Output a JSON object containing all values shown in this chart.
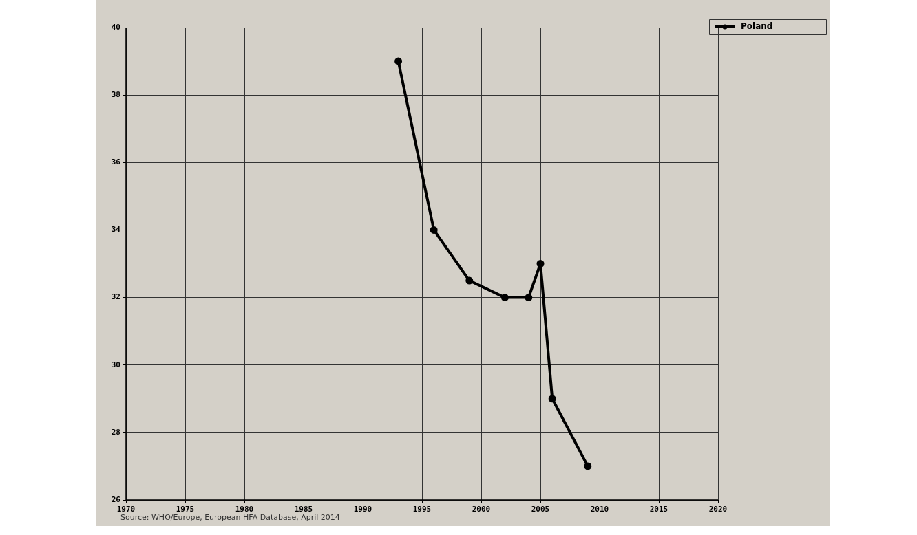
{
  "chart_data": {
    "type": "line",
    "x": [
      1993,
      1996,
      1999,
      2002,
      2004,
      2005,
      2006,
      2009
    ],
    "series": [
      {
        "name": "Poland",
        "color": "#000000",
        "values": [
          39,
          34,
          32.5,
          32,
          32,
          33,
          29,
          27
        ]
      }
    ],
    "xlim": [
      1970,
      2020
    ],
    "xticks": [
      1970,
      1975,
      1980,
      1985,
      1990,
      1995,
      2000,
      2005,
      2010,
      2015,
      2020
    ],
    "ylim": [
      26,
      40
    ],
    "yticks": [
      26,
      28,
      30,
      32,
      34,
      36,
      38,
      40
    ],
    "grid": true,
    "legend": "top right",
    "marker": "circle",
    "line_style": "solid",
    "annotations": [
      "Source: WHO/Europe, European HFA Database, April 2014"
    ]
  }
}
